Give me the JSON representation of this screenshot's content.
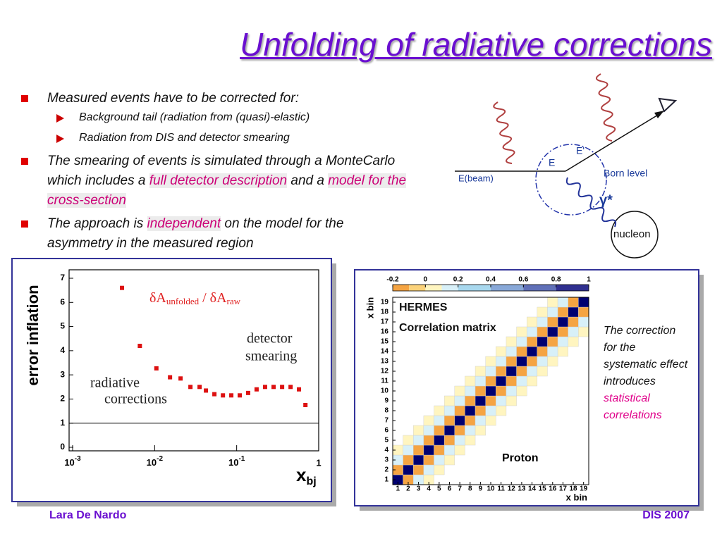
{
  "title": "Unfolding of radiative corrections",
  "bullets": [
    {
      "parts": [
        {
          "text": "Measured events have to be corrected for:"
        }
      ],
      "sub": [
        "Background tail (radiation from (quasi)-elastic)",
        "Radiation from DIS and detector smearing"
      ]
    },
    {
      "parts": [
        {
          "text": "The smearing of events is simulated through a MonteCarlo which includes a "
        },
        {
          "text": "full detector description",
          "highlight": true
        },
        {
          "text": " and a "
        },
        {
          "text": "model for the cross-section",
          "highlight": true
        }
      ]
    },
    {
      "parts": [
        {
          "text": "The approach is "
        },
        {
          "text": "independent",
          "highlight": true
        },
        {
          "text": " on the model for the asymmetry in the measured region"
        }
      ]
    }
  ],
  "diagram": {
    "labels": {
      "beam": "E(beam)",
      "energy": "E",
      "scattered": "E'",
      "born": "Born level",
      "photon": "γ*",
      "nucleon": "nucleon"
    }
  },
  "side_note": {
    "parts": [
      {
        "text": "The correction for the systematic effect introduces "
      },
      {
        "text": "statistical correlations",
        "highlight": true
      }
    ]
  },
  "chart_data": [
    {
      "type": "scatter",
      "ylabel": "error inflation",
      "xlabel": "x",
      "xlabel_sub": "bj",
      "ratio_label": [
        "δA",
        "unfolded",
        " / δA",
        "raw"
      ],
      "annotations": [
        [
          "detector",
          "smearing"
        ],
        [
          "radiative",
          "corrections"
        ]
      ],
      "x": [
        0.004,
        0.0066,
        0.0105,
        0.0154,
        0.0207,
        0.0273,
        0.0353,
        0.0422,
        0.0535,
        0.068,
        0.086,
        0.109,
        0.138,
        0.175,
        0.222,
        0.282,
        0.358,
        0.454,
        0.575,
        0.689
      ],
      "values": [
        6.6,
        4.2,
        3.27,
        2.9,
        2.85,
        2.5,
        2.5,
        2.35,
        2.2,
        2.15,
        2.15,
        2.15,
        2.25,
        2.4,
        2.5,
        2.5,
        2.5,
        2.5,
        2.4,
        1.75
      ],
      "color": "#dd1111",
      "log_x": true,
      "reference_line": 1,
      "xlim": [
        0.001,
        1
      ],
      "ylim": [
        0,
        7
      ],
      "xticks": [
        {
          "value": 0.001,
          "label": "10",
          "exponent": "-3"
        },
        {
          "value": 0.01,
          "label": "10",
          "exponent": "-2"
        },
        {
          "value": 0.1,
          "label": "10",
          "exponent": "-1"
        },
        1
      ],
      "yticks": [
        0,
        1,
        2,
        3,
        4,
        5,
        6,
        7
      ]
    },
    {
      "type": "heatmap",
      "title": [
        "HERMES",
        "Correlation matrix"
      ],
      "annotation": "Proton",
      "xlabel": "x bin",
      "ylabel": "x bin",
      "bins": [
        1,
        2,
        3,
        4,
        5,
        6,
        7,
        8,
        9,
        10,
        11,
        12,
        13,
        14,
        15,
        16,
        17,
        18,
        19
      ],
      "colorbar_lim": [
        -0.2,
        1
      ],
      "colorbar_ticks": [
        -0.2,
        0,
        0.2,
        0.4,
        0.6,
        0.8,
        1
      ],
      "colormap": [
        [
          -0.2,
          "#f5a442"
        ],
        [
          -0.1,
          "#fbd27a"
        ],
        [
          0,
          "#fff5c0"
        ],
        [
          0.1,
          "#d8f0f8"
        ],
        [
          0.2,
          "#a8d8ee"
        ],
        [
          0.4,
          "#88a8d8"
        ],
        [
          0.6,
          "#6070b8"
        ],
        [
          0.8,
          "#303090"
        ],
        [
          1,
          "#000070"
        ]
      ],
      "values": [
        [
          1,
          -0.2,
          0.1,
          0.02,
          null,
          null,
          null,
          null,
          null,
          null,
          null,
          null,
          null,
          null,
          null,
          null,
          null,
          null,
          null
        ],
        [
          -0.2,
          1,
          -0.2,
          0.1,
          0.02,
          null,
          null,
          null,
          null,
          null,
          null,
          null,
          null,
          null,
          null,
          null,
          null,
          null,
          null
        ],
        [
          0.1,
          -0.2,
          1,
          -0.2,
          0.1,
          0.02,
          null,
          null,
          null,
          null,
          null,
          null,
          null,
          null,
          null,
          null,
          null,
          null,
          null
        ],
        [
          0.02,
          0.1,
          -0.2,
          1,
          -0.2,
          0.1,
          0.02,
          null,
          null,
          null,
          null,
          null,
          null,
          null,
          null,
          null,
          null,
          null,
          null
        ],
        [
          null,
          0.02,
          0.1,
          -0.2,
          1,
          -0.2,
          0.1,
          0.02,
          null,
          null,
          null,
          null,
          null,
          null,
          null,
          null,
          null,
          null,
          null
        ],
        [
          null,
          null,
          0.02,
          0.1,
          -0.2,
          1,
          -0.2,
          0.1,
          0.02,
          null,
          null,
          null,
          null,
          null,
          null,
          null,
          null,
          null,
          null
        ],
        [
          null,
          null,
          null,
          0.02,
          0.1,
          -0.2,
          1,
          -0.2,
          0.1,
          0.02,
          null,
          null,
          null,
          null,
          null,
          null,
          null,
          null,
          null
        ],
        [
          null,
          null,
          null,
          null,
          0.02,
          0.1,
          -0.2,
          1,
          -0.2,
          0.1,
          0.02,
          null,
          null,
          null,
          null,
          null,
          null,
          null,
          null
        ],
        [
          null,
          null,
          null,
          null,
          null,
          0.02,
          0.1,
          -0.2,
          1,
          -0.2,
          0.1,
          0.02,
          null,
          null,
          null,
          null,
          null,
          null,
          null
        ],
        [
          null,
          null,
          null,
          null,
          null,
          null,
          0.02,
          0.1,
          -0.2,
          1,
          -0.2,
          0.1,
          0.02,
          null,
          null,
          null,
          null,
          null,
          null
        ],
        [
          null,
          null,
          null,
          null,
          null,
          null,
          null,
          0.02,
          0.1,
          -0.2,
          1,
          -0.2,
          0.1,
          0.02,
          null,
          null,
          null,
          null,
          null
        ],
        [
          null,
          null,
          null,
          null,
          null,
          null,
          null,
          null,
          0.02,
          0.1,
          -0.2,
          1,
          -0.2,
          0.1,
          0.02,
          null,
          null,
          null,
          null
        ],
        [
          null,
          null,
          null,
          null,
          null,
          null,
          null,
          null,
          null,
          0.02,
          0.1,
          -0.2,
          1,
          -0.2,
          0.1,
          0.02,
          null,
          null,
          null
        ],
        [
          null,
          null,
          null,
          null,
          null,
          null,
          null,
          null,
          null,
          null,
          0.02,
          0.1,
          -0.2,
          1,
          -0.2,
          0.1,
          0.02,
          null,
          null
        ],
        [
          null,
          null,
          null,
          null,
          null,
          null,
          null,
          null,
          null,
          null,
          null,
          0.02,
          0.1,
          -0.2,
          1,
          -0.2,
          0.1,
          0.02,
          null
        ],
        [
          null,
          null,
          null,
          null,
          null,
          null,
          null,
          null,
          null,
          null,
          null,
          null,
          0.02,
          0.1,
          -0.2,
          1,
          -0.2,
          0.1,
          0.02
        ],
        [
          null,
          null,
          null,
          null,
          null,
          null,
          null,
          null,
          null,
          null,
          null,
          null,
          null,
          0.02,
          0.1,
          -0.2,
          1,
          -0.2,
          0.1
        ],
        [
          null,
          null,
          null,
          null,
          null,
          null,
          null,
          null,
          null,
          null,
          null,
          null,
          null,
          null,
          0.02,
          0.1,
          -0.2,
          1,
          -0.2
        ],
        [
          null,
          null,
          null,
          null,
          null,
          null,
          null,
          null,
          null,
          null,
          null,
          null,
          null,
          null,
          null,
          0.02,
          0.1,
          -0.2,
          1
        ]
      ]
    }
  ],
  "footer": {
    "author": "Lara De Nardo",
    "event": "DIS 2007"
  }
}
